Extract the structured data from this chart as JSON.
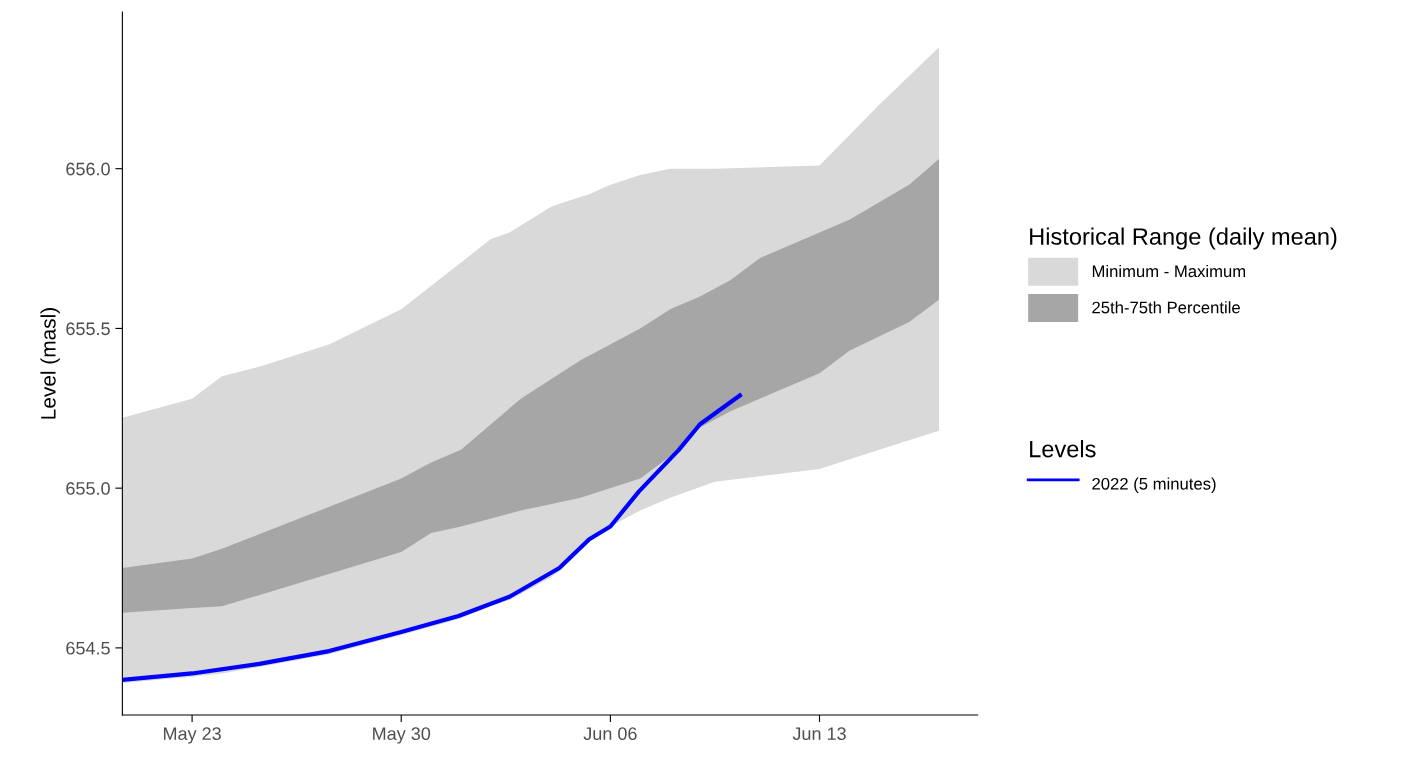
{
  "chart_data": {
    "type": "area",
    "ylabel": "Level (masl)",
    "legend_title": [
      "Historical Range (daily mean)",
      "Levels"
    ],
    "xlim": [
      "2022-05-20T16:00",
      "2022-06-18T07:00"
    ],
    "xticks": [
      {
        "value": "2022-05-23",
        "label": "May 23"
      },
      {
        "value": "2022-05-30",
        "label": "May 30"
      },
      {
        "value": "2022-06-06",
        "label": "Jun 06"
      },
      {
        "value": "2022-06-13",
        "label": "Jun 13"
      }
    ],
    "ylim": [
      654.29,
      656.49
    ],
    "yticks": [
      {
        "value": 654.5,
        "label": "654.5"
      },
      {
        "value": 655.0,
        "label": "655.0"
      },
      {
        "value": 655.5,
        "label": "655.5"
      },
      {
        "value": 656.0,
        "label": "656.0"
      }
    ],
    "grid": false,
    "legend": "right",
    "series": [
      {
        "name": "Minimum - Maximum",
        "color": "#d9d9d9",
        "x": [
          "2022-05-20T16:00",
          "2022-05-23",
          "2022-05-24",
          "2022-05-25T06:00",
          "2022-05-27T14:00",
          "2022-05-30",
          "2022-05-31T22:00",
          "2022-06-02",
          "2022-06-02T15:00",
          "2022-06-04",
          "2022-06-04T07:00",
          "2022-06-05T07:00",
          "2022-06-06",
          "2022-06-07",
          "2022-06-08",
          "2022-06-09T12:00",
          "2022-06-13",
          "2022-06-15",
          "2022-06-17"
        ],
        "lower": [
          654.39,
          654.41,
          654.42,
          654.44,
          654.48,
          654.54,
          654.59,
          654.63,
          654.65,
          654.72,
          654.74,
          654.83,
          654.88,
          654.93,
          654.97,
          655.02,
          655.06,
          655.12,
          655.18
        ],
        "values": [
          null,
          null,
          null,
          null,
          null,
          null,
          null,
          null,
          null,
          null,
          null,
          null,
          null,
          null,
          null,
          null,
          null,
          null,
          null
        ],
        "upper": [
          655.22,
          655.28,
          655.35,
          655.38,
          655.45,
          655.56,
          655.7,
          655.78,
          655.8,
          655.88,
          655.89,
          655.92,
          655.95,
          655.98,
          656.0,
          656.0,
          656.01,
          656.2,
          656.38
        ]
      },
      {
        "name": "25th-75th Percentile",
        "color": "#a6a6a6",
        "x": [
          "2022-05-20T16:00",
          "2022-05-23",
          "2022-05-24",
          "2022-05-30",
          "2022-05-31",
          "2022-06-01",
          "2022-06-03",
          "2022-06-04",
          "2022-06-05",
          "2022-06-07",
          "2022-06-08",
          "2022-06-09",
          "2022-06-10",
          "2022-06-11",
          "2022-06-13",
          "2022-06-14",
          "2022-06-16",
          "2022-06-17"
        ],
        "lower": [
          654.61,
          654.625,
          654.63,
          654.8,
          654.86,
          654.88,
          654.93,
          654.95,
          654.97,
          655.03,
          655.1,
          655.19,
          655.24,
          655.28,
          655.36,
          655.43,
          655.52,
          655.59
        ],
        "values": [
          null,
          null,
          null,
          null,
          null,
          null,
          null,
          null,
          null,
          null,
          null,
          null,
          null,
          null,
          null,
          null,
          null,
          null
        ],
        "upper": [
          654.75,
          654.78,
          654.81,
          655.03,
          655.08,
          655.12,
          655.28,
          655.34,
          655.4,
          655.5,
          655.56,
          655.6,
          655.65,
          655.72,
          655.8,
          655.84,
          655.95,
          656.03
        ]
      },
      {
        "name": "2022 (5 minutes)",
        "type": "line",
        "color": "#0000ff",
        "line_style": "solid",
        "marker": "none",
        "x": [
          "2022-05-20T16:00",
          "2022-05-23",
          "2022-05-25T06:00",
          "2022-05-27T14:00",
          "2022-05-30",
          "2022-05-31T22:00",
          "2022-06-02T15:00",
          "2022-06-04T07:00",
          "2022-06-05T07:00",
          "2022-06-06",
          "2022-06-06T23:00",
          "2022-06-08T07:00",
          "2022-06-09",
          "2022-06-10T08:00"
        ],
        "values": [
          654.4,
          654.42,
          654.45,
          654.49,
          654.55,
          654.6,
          654.66,
          654.75,
          654.84,
          654.88,
          654.99,
          655.12,
          655.2,
          655.29
        ]
      }
    ]
  }
}
